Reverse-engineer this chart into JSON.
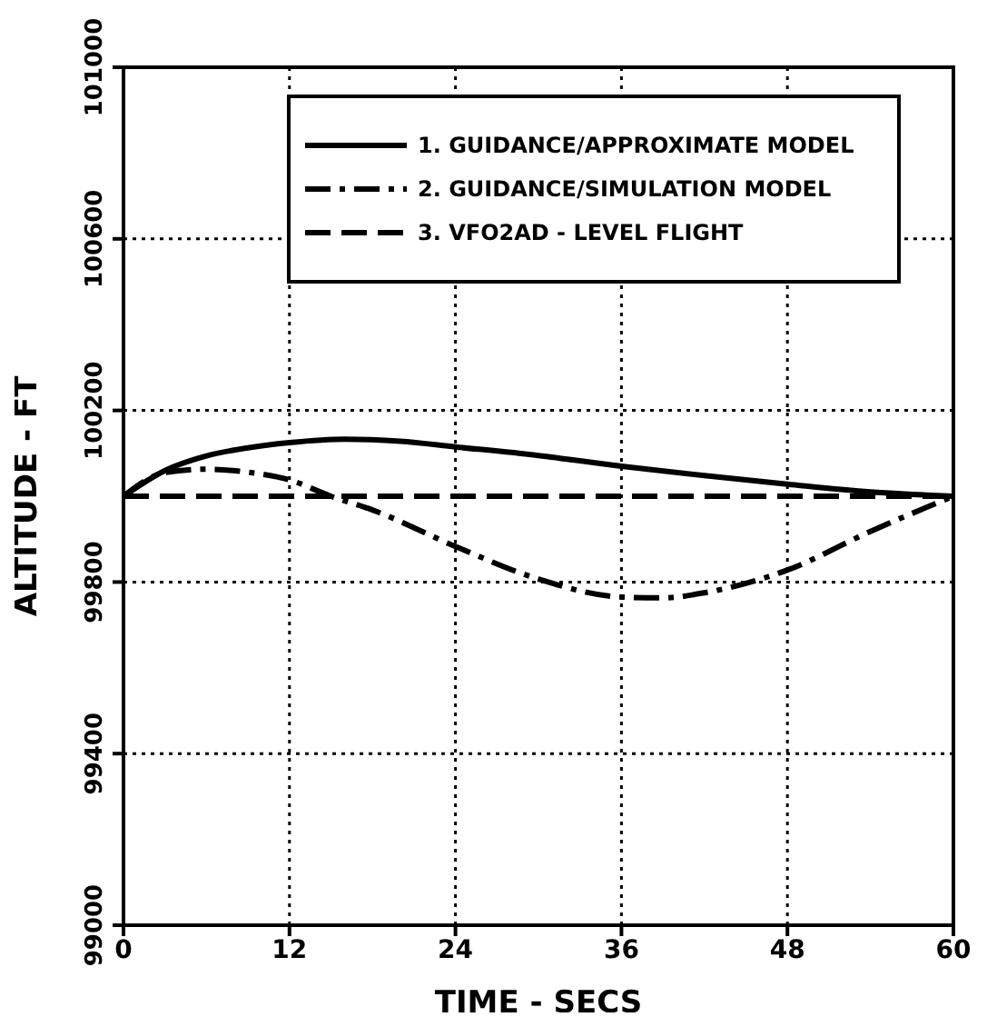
{
  "chart_data": {
    "type": "line",
    "xlabel": "TIME - SECS",
    "ylabel": "ALTITUDE - FT",
    "xlim": [
      0,
      60
    ],
    "xticks": [
      0,
      12,
      24,
      36,
      48,
      60
    ],
    "ylim": [
      99000,
      101000
    ],
    "yticks": [
      99000,
      99400,
      99800,
      100200,
      100600,
      101000
    ],
    "grid": true,
    "legend": "top",
    "marker": "none",
    "series": [
      {
        "name": "1. GUIDANCE/APPROXIMATE MODEL",
        "color": "#000000",
        "line_style": "solid",
        "x": [
          0,
          3,
          6,
          9,
          12,
          16,
          20,
          24,
          30,
          36,
          42,
          48,
          54,
          60
        ],
        "values": [
          100000,
          100060,
          100094,
          100113,
          100125,
          100133,
          100128,
          100115,
          100095,
          100070,
          100048,
          100028,
          100010,
          100000
        ]
      },
      {
        "name": "2. GUIDANCE/SIMULATION MODEL",
        "color": "#000000",
        "line_style": "dashdot",
        "x": [
          0,
          3,
          6,
          9,
          12,
          15,
          18,
          24,
          30,
          36,
          39,
          42,
          48,
          54,
          60
        ],
        "values": [
          100000,
          100055,
          100063,
          100056,
          100038,
          100000,
          99968,
          99883,
          99807,
          99765,
          99763,
          99775,
          99828,
          99918,
          100000
        ]
      },
      {
        "name": "3. VFO2AD - LEVEL FLIGHT",
        "color": "#000000",
        "line_style": "dashed",
        "x": [
          0,
          60
        ],
        "values": [
          100000,
          100000
        ]
      }
    ]
  }
}
